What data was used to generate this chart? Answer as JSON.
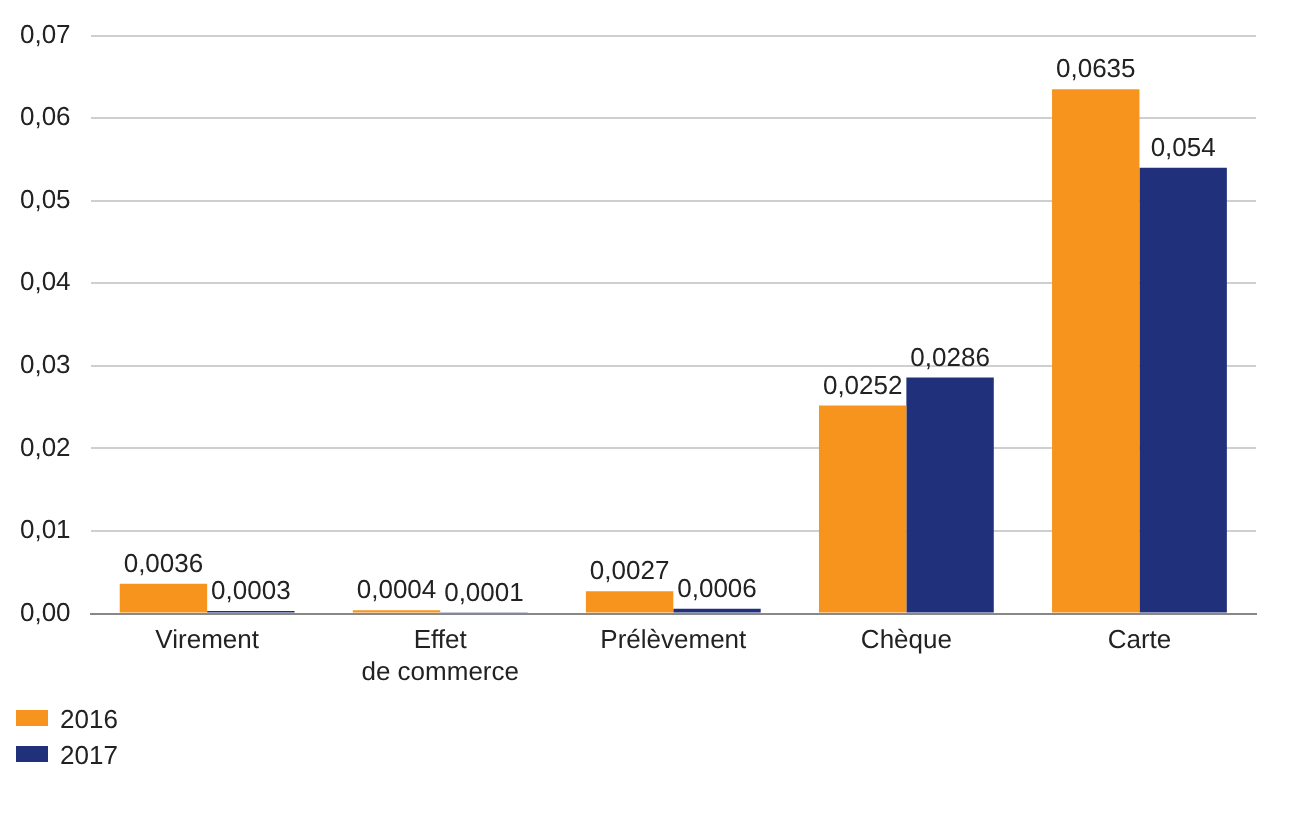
{
  "chart_data": {
    "type": "bar",
    "categories": [
      "Virement",
      "Effet\nde commerce",
      "Prélèvement",
      "Chèque",
      "Carte"
    ],
    "series": [
      {
        "name": "2016",
        "color": "#f7941d",
        "values": [
          0.0036,
          0.0004,
          0.0027,
          0.0252,
          0.0635
        ],
        "value_labels": [
          "0,0036",
          "0,0004",
          "0,0027",
          "0,0252",
          "0,0635"
        ]
      },
      {
        "name": "2017",
        "color": "#21307a",
        "values": [
          0.0003,
          0.0001,
          0.0006,
          0.0286,
          0.054
        ],
        "value_labels": [
          "0,0003",
          "0,0001",
          "0,0006",
          "0,0286",
          "0,054"
        ]
      }
    ],
    "ylim": [
      0,
      0.07
    ],
    "yticks": [
      {
        "value": 0,
        "label": "0,00"
      },
      {
        "value": 0.01,
        "label": "0,01"
      },
      {
        "value": 0.02,
        "label": "0,02"
      },
      {
        "value": 0.03,
        "label": "0,03"
      },
      {
        "value": 0.04,
        "label": "0,04"
      },
      {
        "value": 0.05,
        "label": "0,05"
      },
      {
        "value": 0.06,
        "label": "0,06"
      },
      {
        "value": 0.07,
        "label": "0,07"
      }
    ],
    "grid": "y",
    "legend": "bottom left"
  }
}
